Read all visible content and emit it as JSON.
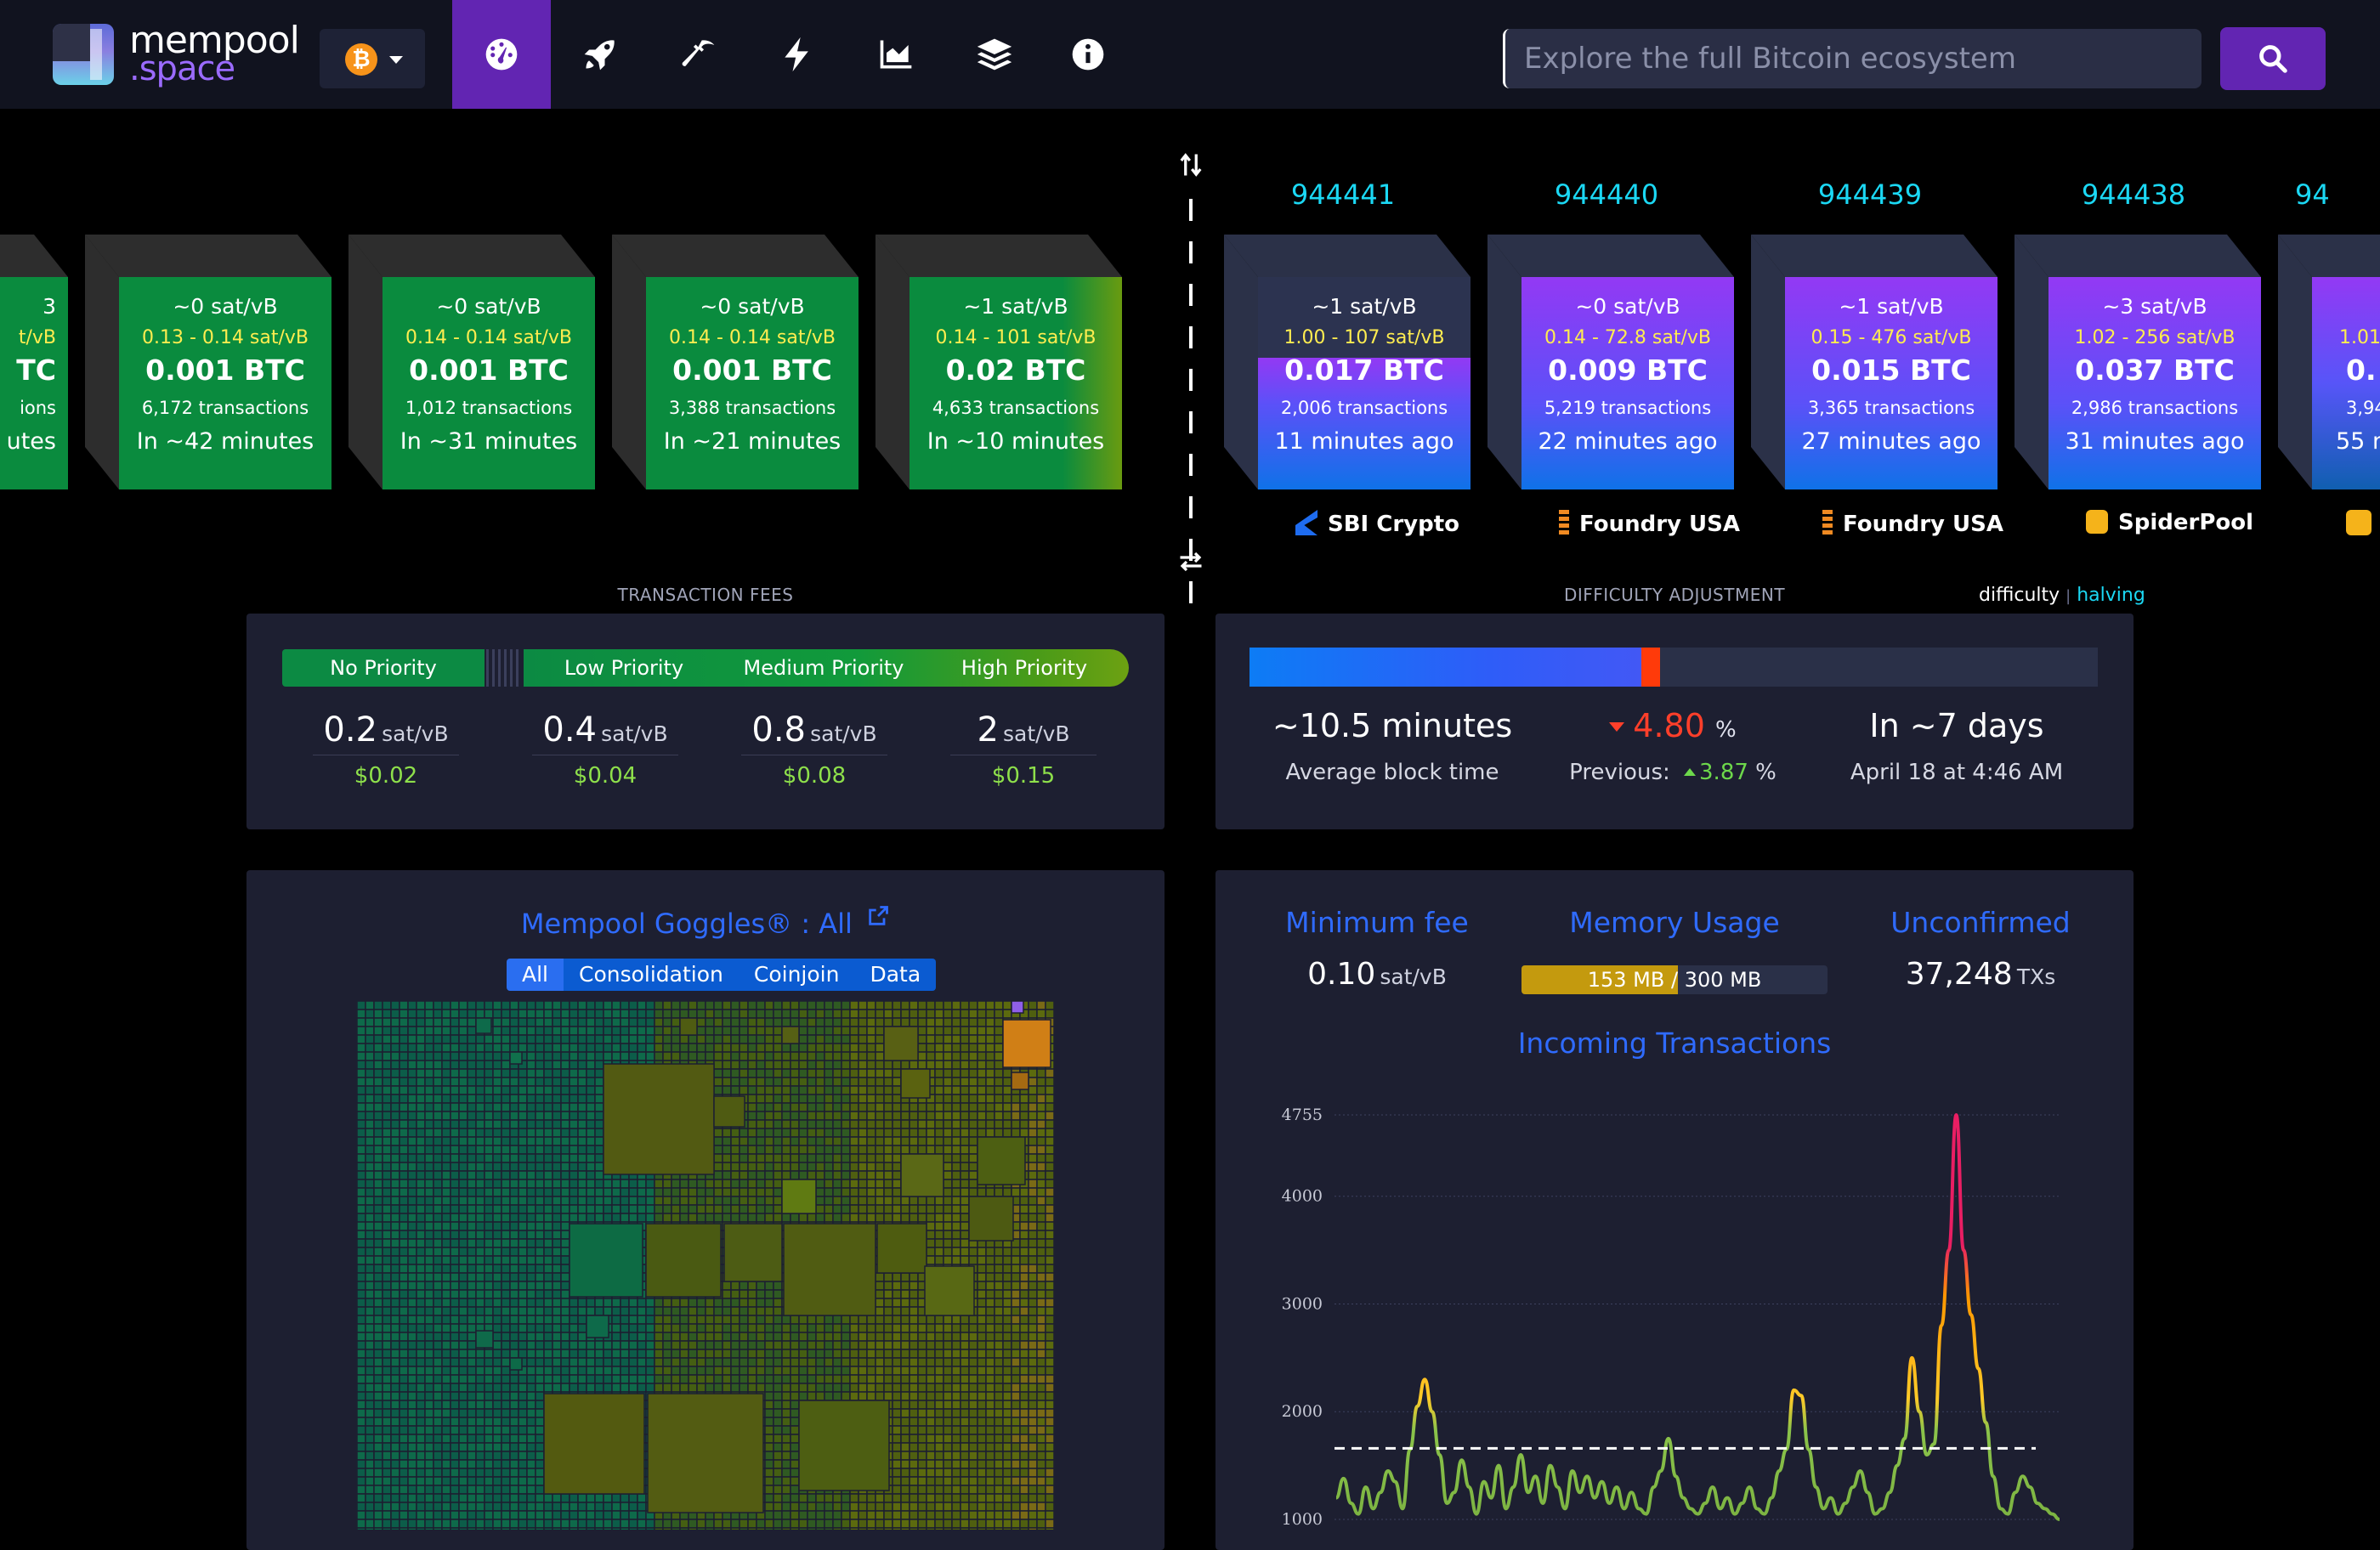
{
  "nav": {
    "logo_word": "mempool",
    "logo_tld": ".space",
    "network_symbol": "₿",
    "items": [
      {
        "name": "dashboard-icon",
        "active": true
      },
      {
        "name": "rocket-icon",
        "active": false
      },
      {
        "name": "mining-pick-icon",
        "active": false
      },
      {
        "name": "lightning-icon",
        "active": false
      },
      {
        "name": "graphs-icon",
        "active": false
      },
      {
        "name": "layers-icon",
        "active": false
      },
      {
        "name": "info-icon",
        "active": false
      }
    ],
    "search_placeholder": "Explore the full Bitcoin ecosystem"
  },
  "pending_blocks": [
    {
      "fee": "~0 sat/vB",
      "range": "0.13 - 0.14 sat/vB",
      "size": "0.001 BTC",
      "txs": "6,172 transactions",
      "time": "In ~42 minutes"
    },
    {
      "fee": "~0 sat/vB",
      "range": "0.14 - 0.14 sat/vB",
      "size": "0.001 BTC",
      "txs": "1,012 transactions",
      "time": "In ~31 minutes"
    },
    {
      "fee": "~0 sat/vB",
      "range": "0.14 - 0.14 sat/vB",
      "size": "0.001 BTC",
      "txs": "3,388 transactions",
      "time": "In ~21 minutes"
    },
    {
      "fee": "~1 sat/vB",
      "range": "0.14 - 101 sat/vB",
      "size": "0.02 BTC",
      "txs": "4,633 transactions",
      "time": "In ~10 minutes"
    }
  ],
  "partial_pending": {
    "fee": "3",
    "range": "t/vB",
    "size": "TC",
    "txs": "ions",
    "time": "utes"
  },
  "mined_blocks": [
    {
      "height": "944441",
      "fee": "~1 sat/vB",
      "range": "1.00 - 107 sat/vB",
      "size": "0.017 BTC",
      "txs": "2,006 transactions",
      "time": "11 minutes ago",
      "pool": "SBI Crypto",
      "fill": 0.62
    },
    {
      "height": "944440",
      "fee": "~0 sat/vB",
      "range": "0.14 - 72.8 sat/vB",
      "size": "0.009 BTC",
      "txs": "5,219 transactions",
      "time": "22 minutes ago",
      "pool": "Foundry USA",
      "fill": 1.0
    },
    {
      "height": "944439",
      "fee": "~1 sat/vB",
      "range": "0.15 - 476 sat/vB",
      "size": "0.015 BTC",
      "txs": "3,365 transactions",
      "time": "27 minutes ago",
      "pool": "Foundry USA",
      "fill": 1.0
    },
    {
      "height": "944438",
      "fee": "~3 sat/vB",
      "range": "1.02 - 256 sat/vB",
      "size": "0.037 BTC",
      "txs": "2,986 transactions",
      "time": "31 minutes ago",
      "pool": "SpiderPool",
      "fill": 1.0
    }
  ],
  "partial_mined": {
    "height": "94",
    "range": "1.01",
    "size": "0.",
    "txs": "3,94",
    "time": "55 n"
  },
  "fees": {
    "title": "TRANSACTION FEES",
    "labels": {
      "none": "No Priority",
      "low": "Low Priority",
      "medium": "Medium Priority",
      "high": "High Priority"
    },
    "unit": "sat/vB",
    "values": [
      {
        "fee": "0.2",
        "usd": "$0.02"
      },
      {
        "fee": "0.4",
        "usd": "$0.04"
      },
      {
        "fee": "0.8",
        "usd": "$0.08"
      },
      {
        "fee": "2",
        "usd": "$0.15"
      }
    ]
  },
  "difficulty": {
    "title": "DIFFICULTY ADJUSTMENT",
    "toggle_difficulty": "difficulty",
    "toggle_sep": "|",
    "toggle_halving": "halving",
    "progress": 0.47,
    "block_time": "~10.5 minutes",
    "block_time_label": "Average block time",
    "change": "4.80",
    "change_unit": "%",
    "previous_label": "Previous:",
    "previous": "3.87",
    "eta": "In ~7 days",
    "eta_date": "April 18 at 4:46 AM"
  },
  "goggles": {
    "title": "Mempool Goggles® : All",
    "tabs": [
      "All",
      "Consolidation",
      "Coinjoin",
      "Data"
    ]
  },
  "stats": {
    "min_fee_label": "Minimum fee",
    "min_fee": "0.10",
    "min_fee_unit": "sat/vB",
    "memory_label": "Memory Usage",
    "memory_used": "153 MB",
    "memory_sep": "/",
    "memory_total": "300 MB",
    "memory_fraction": 0.51,
    "unconfirmed_label": "Unconfirmed",
    "unconfirmed": "37,248",
    "unconfirmed_unit": "TXs",
    "incoming_label": "Incoming Transactions"
  },
  "chart_data": {
    "type": "line",
    "title": "Incoming Transactions",
    "ylim": [
      1000,
      4755
    ],
    "yticks": [
      4755,
      4000,
      3000,
      2000,
      1000
    ],
    "reference_line": 1660,
    "values": [
      1200,
      1380,
      1150,
      1050,
      1300,
      1100,
      1250,
      1450,
      1350,
      1100,
      1650,
      2050,
      2300,
      2000,
      1600,
      1150,
      1250,
      1550,
      1300,
      1050,
      1350,
      1200,
      1500,
      1100,
      1300,
      1600,
      1250,
      1400,
      1150,
      1500,
      1300,
      1100,
      1450,
      1250,
      1400,
      1200,
      1350,
      1150,
      1300,
      1100,
      1250,
      1100,
      1050,
      1300,
      1450,
      1750,
      1400,
      1200,
      1100,
      1050,
      1150,
      1300,
      1100,
      1200,
      1050,
      1150,
      1300,
      1100,
      1050,
      1200,
      1450,
      1650,
      2200,
      2150,
      1650,
      1300,
      1100,
      1200,
      1050,
      1150,
      1300,
      1450,
      1250,
      1050,
      1100,
      1250,
      1500,
      1750,
      2500,
      2000,
      1600,
      1700,
      2800,
      3500,
      4755,
      3500,
      2900,
      2400,
      1900,
      1400,
      1100,
      1050,
      1250,
      1400,
      1300,
      1150,
      1100,
      1050,
      1000
    ]
  }
}
